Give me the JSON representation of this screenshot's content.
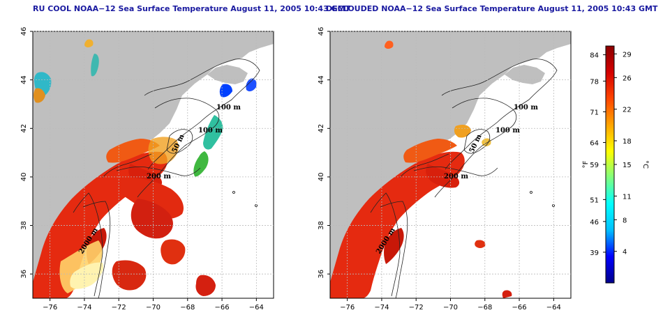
{
  "panels": [
    {
      "id": "ru-cool",
      "title": "RU COOL NOAA−12 Sea Surface Temperature August 11, 2005 10:43 GMT",
      "contours": [
        "100 m",
        "100 m",
        "50 m",
        "200 m",
        "2000 m"
      ]
    },
    {
      "id": "declouded",
      "title": "DECLOUDED NOAA−12 Sea Surface Temperature August 11, 2005 10:43 GMT",
      "contours": [
        "100 m",
        "100 m",
        "50 m",
        "200 m",
        "2000 m"
      ]
    }
  ],
  "axes": {
    "lon_ticks": [
      "−76",
      "−74",
      "−72",
      "−70",
      "−68",
      "−66",
      "−64"
    ],
    "lon_values": [
      -76,
      -74,
      -72,
      -70,
      -68,
      -66,
      -64
    ],
    "lon_range": [
      -77,
      -63
    ],
    "lat_ticks": [
      "46",
      "44",
      "42",
      "40",
      "38",
      "36"
    ],
    "lat_values": [
      46,
      44,
      42,
      40,
      38,
      36
    ],
    "lat_range": [
      35,
      46
    ]
  },
  "colorbar": {
    "f_label": "°F",
    "c_label": "°C",
    "f_ticks": [
      "84",
      "78",
      "71",
      "64",
      "59",
      "51",
      "46",
      "39"
    ],
    "c_ticks": [
      "29",
      "26",
      "22",
      "18",
      "15",
      "11",
      "8",
      "4"
    ],
    "c_range": [
      0,
      30
    ],
    "colors": [
      "#00008b",
      "#0000ff",
      "#00bfff",
      "#00ffff",
      "#7fff7f",
      "#ffff00",
      "#ffa500",
      "#ff4500",
      "#d40000",
      "#8b0000"
    ]
  },
  "colors": {
    "land": "#bfbfbf",
    "ocean": "#ffffff",
    "title": "#1a1aa0"
  }
}
